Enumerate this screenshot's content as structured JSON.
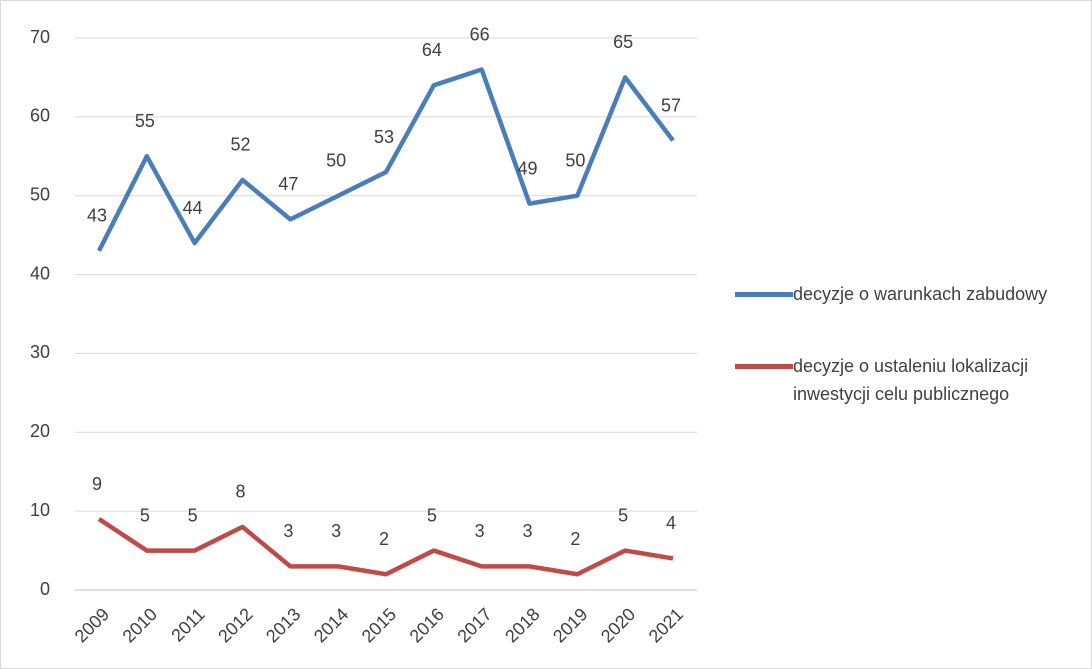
{
  "chart_data": {
    "type": "line",
    "categories": [
      "2009",
      "2010",
      "2011",
      "2012",
      "2013",
      "2014",
      "2015",
      "2016",
      "2017",
      "2018",
      "2019",
      "2020",
      "2021"
    ],
    "series": [
      {
        "name": "decyzje o warunkach zabudowy",
        "color": "#4a7ebb",
        "values": [
          43,
          55,
          44,
          52,
          47,
          50,
          53,
          64,
          66,
          49,
          50,
          65,
          57
        ]
      },
      {
        "name": "decyzje o ustaleniu lokalizacji inwestycji celu publicznego",
        "color": "#be4b48",
        "values": [
          9,
          5,
          5,
          8,
          3,
          3,
          2,
          5,
          3,
          3,
          2,
          5,
          4
        ]
      }
    ],
    "ylim": [
      0,
      70
    ],
    "yticks": [
      0,
      10,
      20,
      30,
      40,
      50,
      60,
      70
    ],
    "grid": true
  }
}
